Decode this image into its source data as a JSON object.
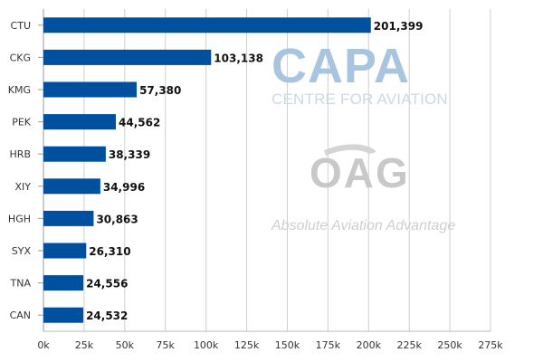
{
  "chart_data": {
    "type": "bar",
    "orientation": "horizontal",
    "categories": [
      "CTU",
      "CKG",
      "KMG",
      "PEK",
      "HRB",
      "XIY",
      "HGH",
      "SYX",
      "TNA",
      "CAN"
    ],
    "values": [
      201399,
      103138,
      57380,
      44562,
      38339,
      34996,
      30863,
      26310,
      24556,
      24532
    ],
    "value_labels": [
      "201,399",
      "103,138",
      "57,380",
      "44,562",
      "38,339",
      "34,996",
      "30,863",
      "26,310",
      "24,556",
      "24,532"
    ],
    "x_ticks": [
      "0k",
      "25k",
      "50k",
      "75k",
      "100k",
      "125k",
      "150k",
      "175k",
      "200k",
      "225k",
      "250k",
      "275k"
    ],
    "xlim": [
      0,
      275000
    ],
    "grid": "vertical",
    "bar_color": "#0050a0",
    "title": "",
    "xlabel": "",
    "ylabel": ""
  },
  "watermarks": {
    "capa_title": "CAPA",
    "capa_subtitle": "CENTRE FOR AVIATION",
    "oag_logo": "OAG",
    "oag_tagline": "Absolute Aviation Advantage"
  }
}
